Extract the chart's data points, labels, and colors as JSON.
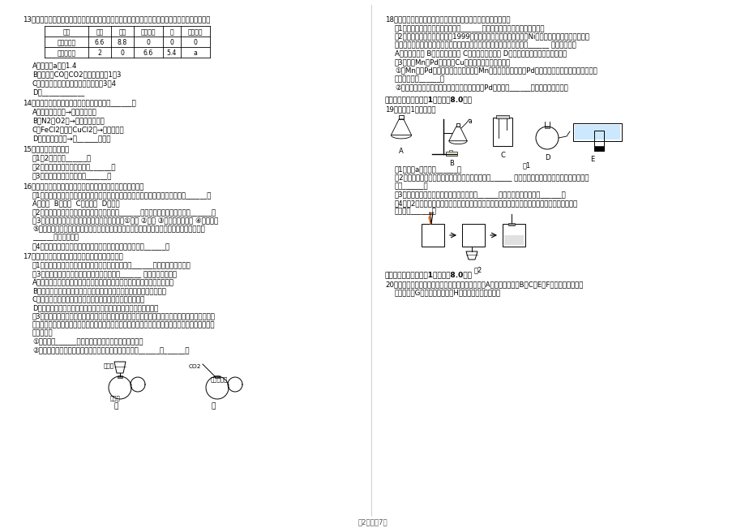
{
  "page_text": "第2页，共7页",
  "bg_color": "#ffffff",
  "text_color": "#000000",
  "left_q13": "13．乙醇不完全燃烧时产生一氧化碳、二氧化碳和水，依据下表数据分析得出的结论中，不正确的是",
  "table_cols": [
    "物质",
    "乙醇",
    "氧气",
    "二氧化碳",
    "水",
    "一氧化碳"
  ],
  "table_rows": [
    [
      "反应前质量",
      "6.6",
      "8.8",
      "0",
      "0",
      "0"
    ],
    [
      "反应后质量",
      "2",
      "0",
      "6.6",
      "5.4",
      "a"
    ]
  ],
  "q13_opts": [
    "A．表中的a值为1.4",
    "B．生成的CO和CO2分子个数比为1：3",
    "C．参加反应的乙醇和氧气的质量比为3：4",
    "D．____________"
  ],
  "left_q14": "14．下列除杂方法（括号内为杂质）正确的是______。",
  "q14_opts": [
    "A．锌粒（铁粉）→加硫酸铜溶液",
    "B．N2（O2）→通过灼热的铜网",
    "C．FeCl2溶液（CuCl2）→加过量的锌",
    "D．氧化铜（铜）→在______中灼烧"
  ],
  "left_q15": "15．用化学用语填空。",
  "q15_items": [
    "（1）2个氮原子______；",
    "（2）氧化镁中镁元素的化合价______；",
    "（3）碳酸铝溶液中的离子有______。"
  ],
  "left_q16": "16．水是人类宝贵的自然资源，与人类的生产、生活密切相关。",
  "q16_items": [
    "（1）水是常见的溶剂，将下列生活中少量的物质分别放入水中，不能形成溶液的是______。",
    "A．食盐  B．面粉  C．植物油  D．蔗糖",
    "（2）电解水时，正、负极产生气体的体积比是______，发生反应的化学方程式为______。",
    "（3）天然水中含有许多杂质，净化水的方法有：①过滤 ②蒸馏 ③加明矾吸附沉降 ④消毒杀菌",
    "⑤活性炭层吸附。要把天然水净化成生活用的自来水，将所选用的净化方法按净化过程排序是",
    "______（填序号）。",
    "（4）区别净化后的自来水是硬水还是软水，可用到的物质是______。"
  ],
  "left_q17": "17．能源、环境与人类的生活和社会发展密切相关。",
  "q17_items": [
    "（1）目前，人类以化石燃料为主要能源，煤、石油和______是常见的化石燃料。",
    "（3）下列关于能源与能量的叙述中，正确的是______ （填字母序号）。",
    "A．酒精属于可再生能源，适量加入汽油中可作为汽车燃料，减少尾气的污染",
    "B．人类利用的能量都是通过化学反应获得的，最常见的就是燃料的燃烧",
    "C．将煤块粉碎是为了增大与空气的接触面积，使其燃烧充分",
    "D．使化石燃料充分燃烧，不但能节约资源，还能减少对空气的污染",
    "（3）如图所示的甲、乙两个装置（气密性良好），从分液漏斗中加入液体，一段时间后两装置中的",
    "气球都膨大（忽略液体体积对气球体积的影响）。精确称量发现：两个实验反应后质量均与反应前数",
    "量不相等。",
    "①两个反应______（填遵守或不遵守）质量守恒定律。",
    "②请分别用化学方程式解释两个装置中气球膨大的原因是______、______。"
  ],
  "right_q18": "18．金属与我们的生活息息相关，请回答下列与金属有关的问题。",
  "q18_items": [
    "（1）沙里淘金说明金在自然界中以______形式存在，（填单质或化合物）；",
    "（2）我国第四套人民币硬币从1999年开始发行，一元为铜芯镀镍（Ni）合金，五角币为铜芯镀铜合",
    "金，一角币为铝合金或不锈钢，选择铸造硬币的材料不需要考虑的因素是______ （填序号）。",
    "A．金属的硬度 B．金属的导电性 C．金属的耐腐蚀性 D．金属价格与硬币面值的吻合度",
    "（3）比较Mn、Pd（把）、Cu三种金属的活动性顺序。",
    "①将Mn片、Pd片分别加入到稀盐酸中，Mn片表面有气泡产生，Pd片没有变化，根据上述实验现象，",
    "得出的结论是______；",
    "②要确切得出这三种金属的活动性顺序，还需将Pd片加入到______溶液中，观察现象。"
  ],
  "sec3": "三、计算题（本大题共1小题，共8.0分）",
  "right_q19": "19．根据图1回答问题。",
  "q19_items": [
    "（1）仪器a的名称为______。",
    "（2）实验室用高锰酸钾制取氧气选用的发生装置是______ （填字母序号，下同）；反应的化学方程",
    "式为______。",
    "（3）实验室制取二氧化碳选用的收集装置是______；反应的化学方程式为______。",
    "（4）图2是木炭在氧气中燃烧的实验示意图，为进一步证明木炭与氧气发生了化学反应，继续进行",
    "的实验是______。"
  ],
  "fig1_label": "图1",
  "fig2_label": "图2",
  "sec4": "四、推断题（本大题共1小题，共8.0分）",
  "right_q20": "20．如图是一些初中化学常用物质的转化关系，其中A是红棕色固体，B、C、E、F均是一种无色、无",
  "right_q20b": "味的气体，G的溶液为浅绿色，H为大理石的主要成分。"
}
